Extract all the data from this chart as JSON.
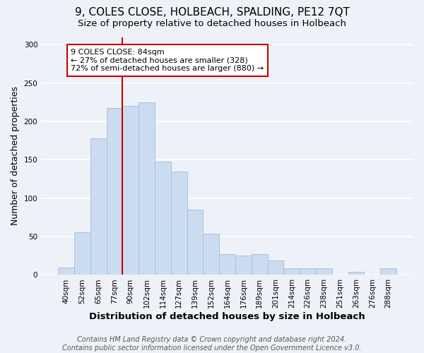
{
  "title": "9, COLES CLOSE, HOLBEACH, SPALDING, PE12 7QT",
  "subtitle": "Size of property relative to detached houses in Holbeach",
  "xlabel": "Distribution of detached houses by size in Holbeach",
  "ylabel": "Number of detached properties",
  "bar_labels": [
    "40sqm",
    "52sqm",
    "65sqm",
    "77sqm",
    "90sqm",
    "102sqm",
    "114sqm",
    "127sqm",
    "139sqm",
    "152sqm",
    "164sqm",
    "176sqm",
    "189sqm",
    "201sqm",
    "214sqm",
    "226sqm",
    "238sqm",
    "251sqm",
    "263sqm",
    "276sqm",
    "288sqm"
  ],
  "bar_values": [
    10,
    56,
    178,
    218,
    220,
    225,
    148,
    135,
    85,
    54,
    27,
    25,
    27,
    19,
    9,
    9,
    9,
    0,
    4,
    0,
    9
  ],
  "bar_color": "#ccdcf0",
  "bar_edge_color": "#aac0de",
  "vline_color": "#cc0000",
  "annotation_text": "9 COLES CLOSE: 84sqm\n← 27% of detached houses are smaller (328)\n72% of semi-detached houses are larger (880) →",
  "annotation_box_facecolor": "#ffffff",
  "annotation_box_edgecolor": "#cc0000",
  "ylim": [
    0,
    310
  ],
  "yticks": [
    0,
    50,
    100,
    150,
    200,
    250,
    300
  ],
  "footer_line1": "Contains HM Land Registry data © Crown copyright and database right 2024.",
  "footer_line2": "Contains public sector information licensed under the Open Government Licence v3.0.",
  "background_color": "#eef2f8",
  "plot_bg_color": "#eef2f8",
  "grid_color": "#ffffff",
  "title_fontsize": 11,
  "subtitle_fontsize": 9.5,
  "xlabel_fontsize": 9.5,
  "ylabel_fontsize": 9,
  "tick_fontsize": 7.5,
  "annotation_fontsize": 8,
  "footer_fontsize": 7
}
